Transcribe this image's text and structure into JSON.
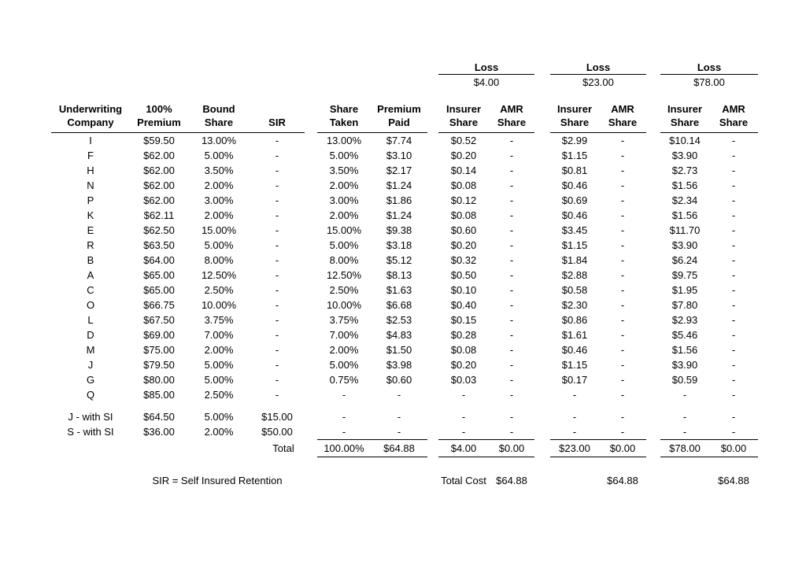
{
  "loss_groups": [
    {
      "title": "Loss",
      "amount": "$4.00"
    },
    {
      "title": "Loss",
      "amount": "$23.00"
    },
    {
      "title": "Loss",
      "amount": "$78.00"
    }
  ],
  "columns": {
    "company": [
      "Underwriting",
      "Company"
    ],
    "premium": [
      "100%",
      "Premium"
    ],
    "bound_share": [
      "Bound",
      "Share"
    ],
    "sir": [
      "",
      "SIR"
    ],
    "share_taken": [
      "Share",
      "Taken"
    ],
    "premium_paid": [
      "Premium",
      "Paid"
    ],
    "insurer_share": [
      "Insurer",
      "Share"
    ],
    "amr_share": [
      "AMR",
      "Share"
    ]
  },
  "rows": [
    [
      "I",
      "$59.50",
      "13.00%",
      "-",
      "13.00%",
      "$7.74",
      "$0.52",
      "-",
      "$2.99",
      "-",
      "$10.14",
      "-"
    ],
    [
      "F",
      "$62.00",
      "5.00%",
      "-",
      "5.00%",
      "$3.10",
      "$0.20",
      "-",
      "$1.15",
      "-",
      "$3.90",
      "-"
    ],
    [
      "H",
      "$62.00",
      "3.50%",
      "-",
      "3.50%",
      "$2.17",
      "$0.14",
      "-",
      "$0.81",
      "-",
      "$2.73",
      "-"
    ],
    [
      "N",
      "$62.00",
      "2.00%",
      "-",
      "2.00%",
      "$1.24",
      "$0.08",
      "-",
      "$0.46",
      "-",
      "$1.56",
      "-"
    ],
    [
      "P",
      "$62.00",
      "3.00%",
      "-",
      "3.00%",
      "$1.86",
      "$0.12",
      "-",
      "$0.69",
      "-",
      "$2.34",
      "-"
    ],
    [
      "K",
      "$62.11",
      "2.00%",
      "-",
      "2.00%",
      "$1.24",
      "$0.08",
      "-",
      "$0.46",
      "-",
      "$1.56",
      "-"
    ],
    [
      "E",
      "$62.50",
      "15.00%",
      "-",
      "15.00%",
      "$9.38",
      "$0.60",
      "-",
      "$3.45",
      "-",
      "$11.70",
      "-"
    ],
    [
      "R",
      "$63.50",
      "5.00%",
      "-",
      "5.00%",
      "$3.18",
      "$0.20",
      "-",
      "$1.15",
      "-",
      "$3.90",
      "-"
    ],
    [
      "B",
      "$64.00",
      "8.00%",
      "-",
      "8.00%",
      "$5.12",
      "$0.32",
      "-",
      "$1.84",
      "-",
      "$6.24",
      "-"
    ],
    [
      "A",
      "$65.00",
      "12.50%",
      "-",
      "12.50%",
      "$8.13",
      "$0.50",
      "-",
      "$2.88",
      "-",
      "$9.75",
      "-"
    ],
    [
      "C",
      "$65.00",
      "2.50%",
      "-",
      "2.50%",
      "$1.63",
      "$0.10",
      "-",
      "$0.58",
      "-",
      "$1.95",
      "-"
    ],
    [
      "O",
      "$66.75",
      "10.00%",
      "-",
      "10.00%",
      "$6.68",
      "$0.40",
      "-",
      "$2.30",
      "-",
      "$7.80",
      "-"
    ],
    [
      "L",
      "$67.50",
      "3.75%",
      "-",
      "3.75%",
      "$2.53",
      "$0.15",
      "-",
      "$0.86",
      "-",
      "$2.93",
      "-"
    ],
    [
      "D",
      "$69.00",
      "7.00%",
      "-",
      "7.00%",
      "$4.83",
      "$0.28",
      "-",
      "$1.61",
      "-",
      "$5.46",
      "-"
    ],
    [
      "M",
      "$75.00",
      "2.00%",
      "-",
      "2.00%",
      "$1.50",
      "$0.08",
      "-",
      "$0.46",
      "-",
      "$1.56",
      "-"
    ],
    [
      "J",
      "$79.50",
      "5.00%",
      "-",
      "5.00%",
      "$3.98",
      "$0.20",
      "-",
      "$1.15",
      "-",
      "$3.90",
      "-"
    ],
    [
      "G",
      "$80.00",
      "5.00%",
      "-",
      "0.75%",
      "$0.60",
      "$0.03",
      "-",
      "$0.17",
      "-",
      "$0.59",
      "-"
    ],
    [
      "Q",
      "$85.00",
      "2.50%",
      "-",
      "-",
      "-",
      "-",
      "-",
      "-",
      "-",
      "-",
      "-"
    ]
  ],
  "si_rows": [
    [
      "J - with SI",
      "$64.50",
      "5.00%",
      "$15.00",
      "-",
      "-",
      "-",
      "-",
      "-",
      "-",
      "-",
      "-"
    ],
    [
      "S - with SI",
      "$36.00",
      "2.00%",
      "$50.00",
      "-",
      "-",
      "-",
      "-",
      "-",
      "-",
      "-",
      "-"
    ]
  ],
  "total_row": {
    "label": "Total",
    "share_taken": "100.00%",
    "premium_paid": "$64.88",
    "loss4_insurer": "$4.00",
    "loss4_amr": "$0.00",
    "loss23_insurer": "$23.00",
    "loss23_amr": "$0.00",
    "loss78_insurer": "$78.00",
    "loss78_amr": "$0.00"
  },
  "footer": {
    "sir_note": "SIR = Self Insured Retention",
    "total_cost_label": "Total Cost",
    "total_cost_values": [
      "$64.88",
      "$64.88",
      "$64.88"
    ]
  }
}
